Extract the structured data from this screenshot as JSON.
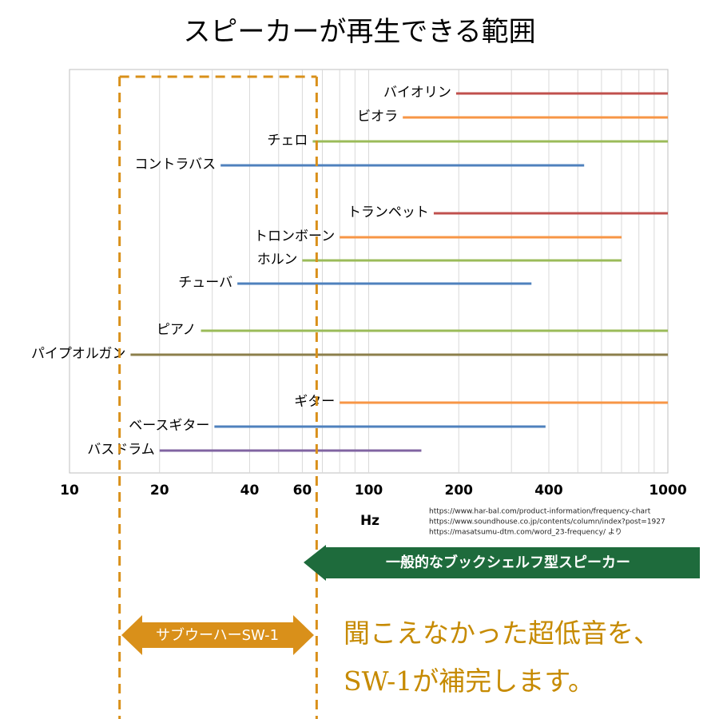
{
  "chart_data": {
    "type": "range",
    "title": "スピーカーが再生できる範囲",
    "x_label": "Hz",
    "log_x": true,
    "xlim": [
      10,
      1000
    ],
    "xticks": [
      10,
      20,
      40,
      60,
      100,
      200,
      400,
      1000
    ],
    "xgrid": [
      20,
      30,
      40,
      50,
      60,
      70,
      80,
      90,
      100,
      200,
      300,
      400,
      500,
      600,
      700,
      800,
      900
    ],
    "categories": [
      "バイオリン",
      "ビオラ",
      "チェロ",
      "コントラバス",
      "トランペット",
      "トロンボーン",
      "ホルン",
      "チューバ",
      "ピアノ",
      "パイプオルガン",
      "ギター",
      "ベースギター",
      "バスドラム"
    ],
    "low": [
      196,
      130,
      65,
      32,
      165,
      80,
      60,
      36.4,
      27.5,
      16,
      80,
      30.5,
      20
    ],
    "high": [
      1000,
      1000,
      1000,
      525,
      1000,
      700,
      700,
      350,
      1000,
      1000,
      1000,
      390,
      150
    ],
    "colors": [
      "#c0504d",
      "#f79646",
      "#9bbb59",
      "#4f81bd",
      "#c0504d",
      "#f79646",
      "#9bbb59",
      "#4f81bd",
      "#9bbb59",
      "#8c7f4b",
      "#f79646",
      "#4f81bd",
      "#8064a2"
    ],
    "highlight_range": [
      14.7,
      67
    ],
    "highlight_color": "#d9901a",
    "sources": [
      "https://www.har-bal.com/product-information/frequency-chart",
      "https://www.soundhouse.co.jp/contents/column/index?post=1927",
      "https://masatsumu-dtm.com/word_23-frequency/  より"
    ],
    "bookshelf_label": "一般的なブックシェルフ型スピーカー",
    "subwoofer_label": "サブウーハーSW-1",
    "message": [
      "聞こえなかった超低音を、",
      "SW-1が補完します。"
    ]
  }
}
